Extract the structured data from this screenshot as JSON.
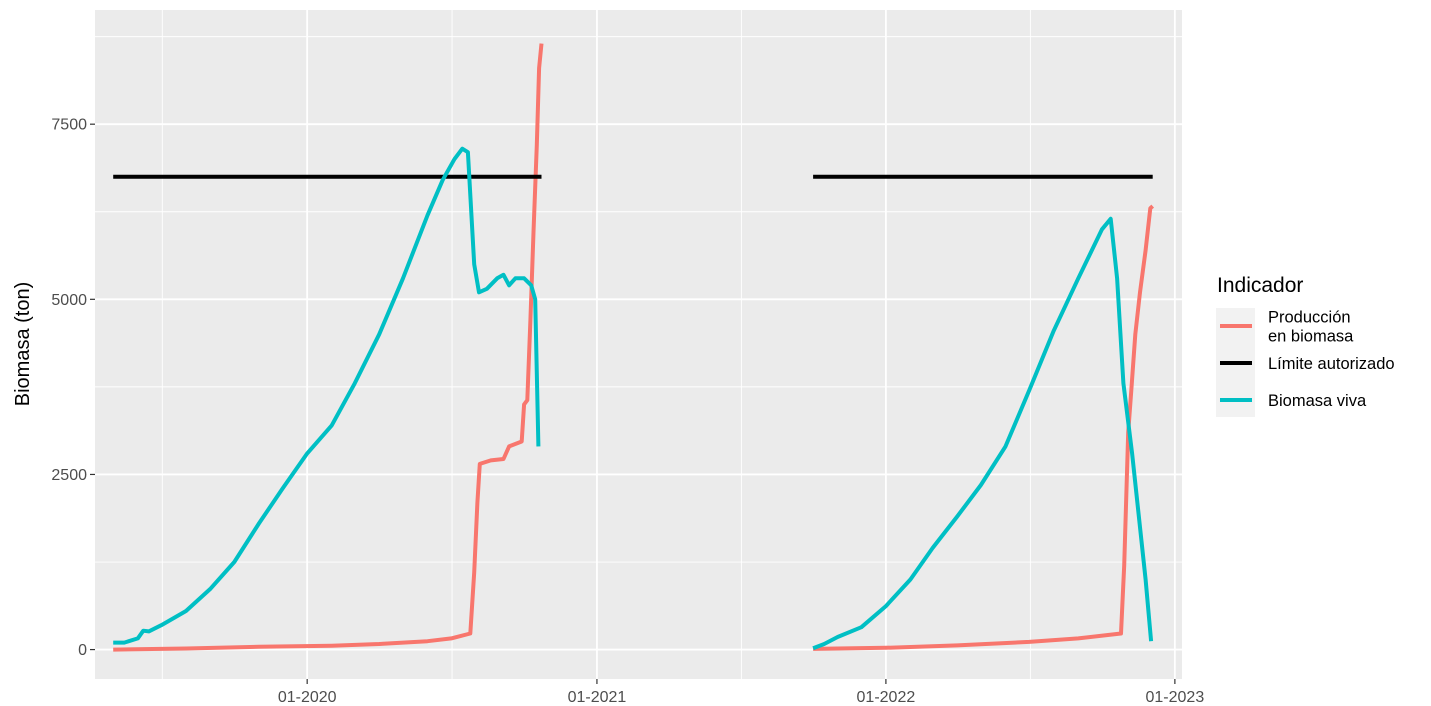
{
  "chart_data": {
    "type": "line",
    "ylabel": "Biomasa (ton)",
    "xlabel": "",
    "x_ticks": [
      {
        "date": "2020-01-01",
        "label": "01-2020"
      },
      {
        "date": "2021-01-01",
        "label": "01-2021"
      },
      {
        "date": "2022-01-01",
        "label": "01-2022"
      },
      {
        "date": "2023-01-01",
        "label": "01-2023"
      }
    ],
    "y_ticks": [
      0,
      2500,
      5000,
      7500
    ],
    "xlim": [
      "2019-04-08",
      "2023-01-10"
    ],
    "ylim": [
      -420,
      9130
    ],
    "grid": true,
    "legend": {
      "title": "Indicador",
      "position": "right",
      "entries": [
        {
          "label_lines": [
            "Producción",
            "en biomasa"
          ],
          "color": "#F8766D"
        },
        {
          "label_lines": [
            "Límite autorizado"
          ],
          "color": "#000000"
        },
        {
          "label_lines": [
            "Biomasa viva"
          ],
          "color": "#00BFC4"
        }
      ]
    },
    "series": [
      {
        "legend_index": 0,
        "color": "#F8766D",
        "segments": [
          [
            [
              "2019-05-01",
              0
            ],
            [
              "2019-08-01",
              15
            ],
            [
              "2019-11-01",
              40
            ],
            [
              "2020-02-01",
              55
            ],
            [
              "2020-04-01",
              80
            ],
            [
              "2020-06-01",
              120
            ],
            [
              "2020-07-01",
              160
            ],
            [
              "2020-07-25",
              230
            ],
            [
              "2020-07-30",
              1100
            ],
            [
              "2020-08-03",
              2100
            ],
            [
              "2020-08-06",
              2650
            ],
            [
              "2020-08-20",
              2700
            ],
            [
              "2020-09-05",
              2720
            ],
            [
              "2020-09-12",
              2900
            ],
            [
              "2020-09-28",
              2970
            ],
            [
              "2020-10-01",
              3500
            ],
            [
              "2020-10-05",
              3560
            ],
            [
              "2020-10-09",
              4700
            ],
            [
              "2020-10-13",
              6000
            ],
            [
              "2020-10-17",
              7200
            ],
            [
              "2020-10-20",
              8300
            ],
            [
              "2020-10-23",
              8650
            ]
          ],
          [
            [
              "2021-10-01",
              10
            ],
            [
              "2022-01-01",
              25
            ],
            [
              "2022-04-01",
              60
            ],
            [
              "2022-07-01",
              110
            ],
            [
              "2022-09-01",
              160
            ],
            [
              "2022-10-25",
              230
            ],
            [
              "2022-10-29",
              1200
            ],
            [
              "2022-11-03",
              3100
            ],
            [
              "2022-11-07",
              3700
            ],
            [
              "2022-11-12",
              4500
            ],
            [
              "2022-11-18",
              5100
            ],
            [
              "2022-11-25",
              5700
            ],
            [
              "2022-12-01",
              6300
            ],
            [
              "2022-12-04",
              6330
            ]
          ]
        ]
      },
      {
        "legend_index": 1,
        "color": "#000000",
        "segments": [
          [
            [
              "2019-05-01",
              6750
            ],
            [
              "2020-10-23",
              6750
            ]
          ],
          [
            [
              "2021-10-01",
              6750
            ],
            [
              "2022-12-04",
              6750
            ]
          ]
        ]
      },
      {
        "legend_index": 2,
        "color": "#00BFC4",
        "segments": [
          [
            [
              "2019-05-01",
              100
            ],
            [
              "2019-05-15",
              100
            ],
            [
              "2019-06-01",
              160
            ],
            [
              "2019-06-08",
              270
            ],
            [
              "2019-06-15",
              260
            ],
            [
              "2019-07-01",
              350
            ],
            [
              "2019-08-01",
              550
            ],
            [
              "2019-09-01",
              870
            ],
            [
              "2019-10-01",
              1250
            ],
            [
              "2019-11-01",
              1800
            ],
            [
              "2019-12-01",
              2300
            ],
            [
              "2020-01-01",
              2800
            ],
            [
              "2020-02-01",
              3200
            ],
            [
              "2020-03-01",
              3800
            ],
            [
              "2020-04-01",
              4500
            ],
            [
              "2020-05-01",
              5300
            ],
            [
              "2020-06-01",
              6200
            ],
            [
              "2020-06-20",
              6700
            ],
            [
              "2020-07-05",
              7000
            ],
            [
              "2020-07-15",
              7150
            ],
            [
              "2020-07-22",
              7100
            ],
            [
              "2020-07-30",
              5500
            ],
            [
              "2020-08-05",
              5100
            ],
            [
              "2020-08-15",
              5150
            ],
            [
              "2020-08-28",
              5300
            ],
            [
              "2020-09-05",
              5350
            ],
            [
              "2020-09-12",
              5200
            ],
            [
              "2020-09-20",
              5300
            ],
            [
              "2020-10-01",
              5300
            ],
            [
              "2020-10-10",
              5200
            ],
            [
              "2020-10-15",
              5000
            ],
            [
              "2020-10-19",
              2900
            ]
          ],
          [
            [
              "2021-10-01",
              20
            ],
            [
              "2021-10-15",
              80
            ],
            [
              "2021-11-01",
              180
            ],
            [
              "2021-12-01",
              320
            ],
            [
              "2022-01-01",
              620
            ],
            [
              "2022-02-01",
              1000
            ],
            [
              "2022-03-01",
              1450
            ],
            [
              "2022-04-01",
              1900
            ],
            [
              "2022-05-01",
              2350
            ],
            [
              "2022-06-01",
              2900
            ],
            [
              "2022-07-01",
              3700
            ],
            [
              "2022-08-01",
              4550
            ],
            [
              "2022-09-01",
              5300
            ],
            [
              "2022-10-01",
              6000
            ],
            [
              "2022-10-12",
              6150
            ],
            [
              "2022-10-20",
              5300
            ],
            [
              "2022-10-28",
              3800
            ],
            [
              "2022-11-08",
              2800
            ],
            [
              "2022-11-25",
              1000
            ],
            [
              "2022-12-02",
              120
            ]
          ]
        ]
      }
    ]
  }
}
